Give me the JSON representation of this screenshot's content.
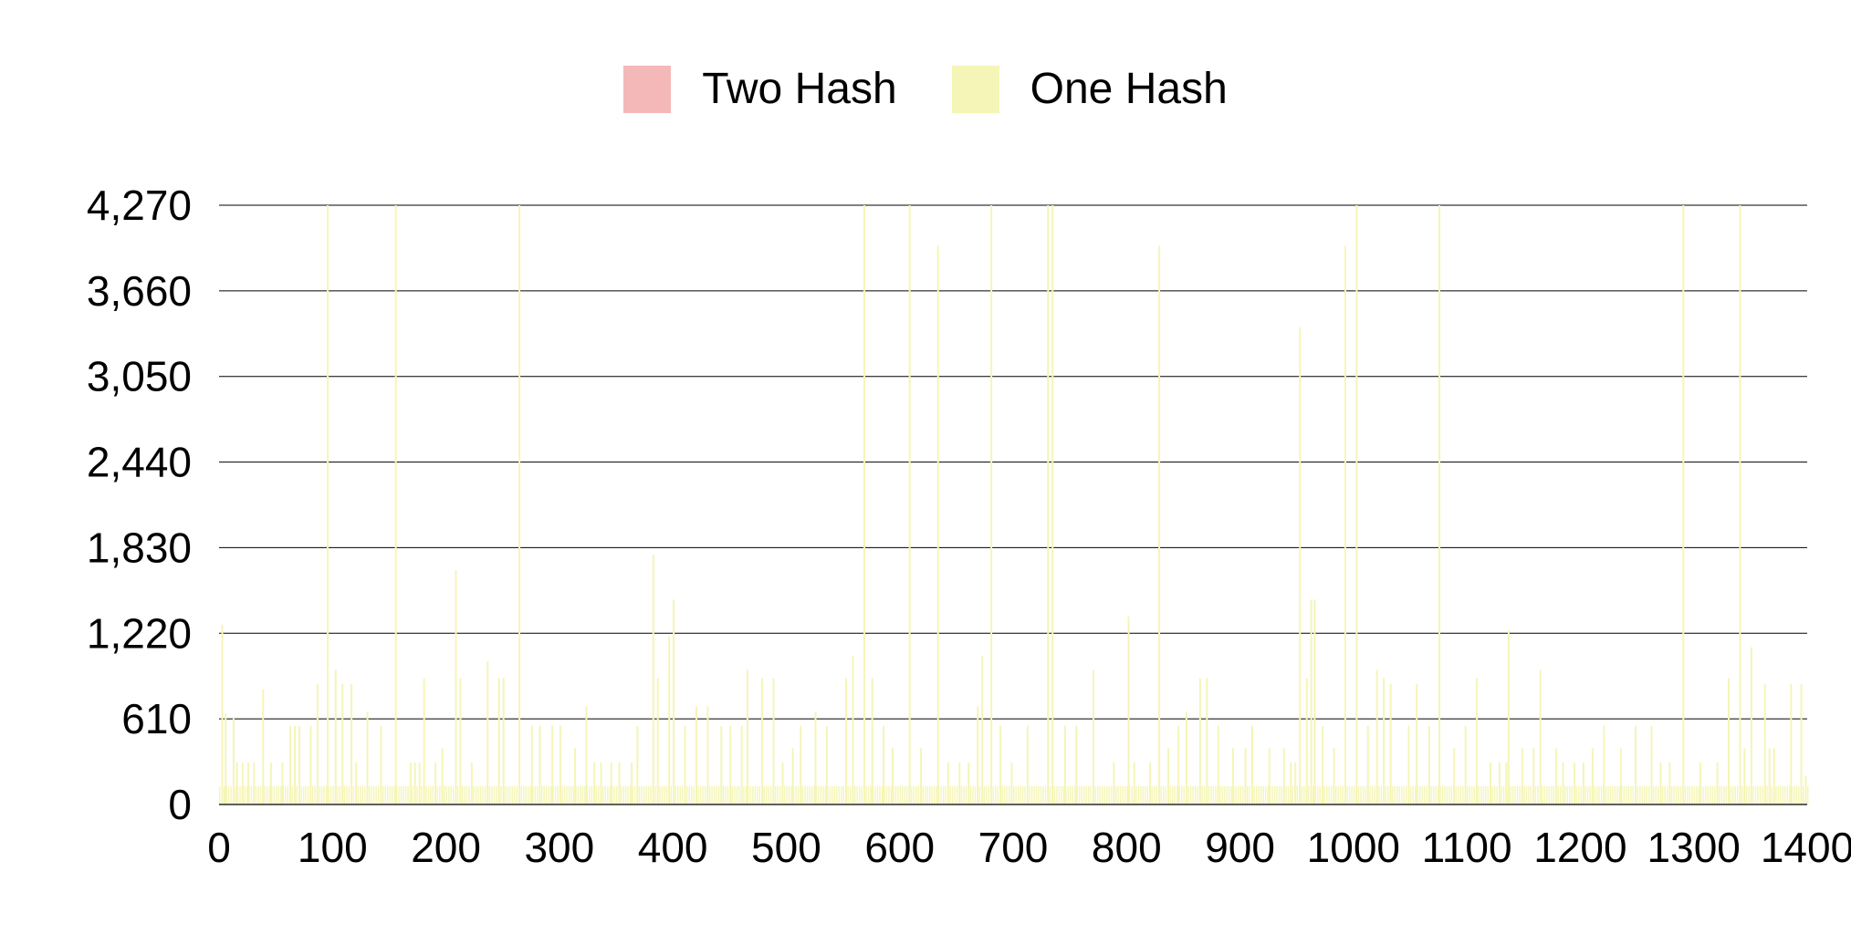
{
  "chart_data": {
    "type": "bar",
    "title": "",
    "xlabel": "",
    "ylabel": "",
    "xlim": [
      0,
      1400
    ],
    "ylim": [
      0,
      4270
    ],
    "x_ticks": [
      "0",
      "100",
      "200",
      "300",
      "400",
      "500",
      "600",
      "700",
      "800",
      "900",
      "1000",
      "1100",
      "1200",
      "1300",
      "1400"
    ],
    "y_ticks": [
      "0",
      "610",
      "1,220",
      "1,830",
      "2,440",
      "3,050",
      "3,660",
      "4,270"
    ],
    "grid": true,
    "legend_position": "top-center",
    "baseline": 130,
    "series": [
      {
        "name": "Two Hash",
        "color": "#f4b8b8",
        "values": []
      },
      {
        "name": "One Hash",
        "color": "#f5f5b8",
        "points": [
          [
            2,
            1280
          ],
          [
            5,
            650
          ],
          [
            12,
            620
          ],
          [
            15,
            300
          ],
          [
            20,
            300
          ],
          [
            25,
            300
          ],
          [
            30,
            300
          ],
          [
            38,
            820
          ],
          [
            45,
            300
          ],
          [
            55,
            300
          ],
          [
            62,
            560
          ],
          [
            66,
            560
          ],
          [
            70,
            560
          ],
          [
            80,
            560
          ],
          [
            86,
            860
          ],
          [
            95,
            4270
          ],
          [
            102,
            960
          ],
          [
            108,
            860
          ],
          [
            116,
            860
          ],
          [
            120,
            300
          ],
          [
            130,
            660
          ],
          [
            142,
            560
          ],
          [
            155,
            4270
          ],
          [
            168,
            300
          ],
          [
            172,
            300
          ],
          [
            176,
            300
          ],
          [
            180,
            900
          ],
          [
            190,
            300
          ],
          [
            196,
            400
          ],
          [
            208,
            1670
          ],
          [
            212,
            900
          ],
          [
            222,
            300
          ],
          [
            236,
            1020
          ],
          [
            246,
            900
          ],
          [
            250,
            900
          ],
          [
            264,
            4270
          ],
          [
            275,
            560
          ],
          [
            282,
            560
          ],
          [
            293,
            560
          ],
          [
            300,
            560
          ],
          [
            313,
            400
          ],
          [
            323,
            700
          ],
          [
            330,
            300
          ],
          [
            336,
            300
          ],
          [
            345,
            300
          ],
          [
            352,
            300
          ],
          [
            363,
            300
          ],
          [
            368,
            560
          ],
          [
            382,
            1780
          ],
          [
            386,
            900
          ],
          [
            396,
            1200
          ],
          [
            400,
            1460
          ],
          [
            410,
            560
          ],
          [
            420,
            700
          ],
          [
            430,
            700
          ],
          [
            442,
            560
          ],
          [
            450,
            560
          ],
          [
            460,
            560
          ],
          [
            465,
            960
          ],
          [
            478,
            900
          ],
          [
            488,
            900
          ],
          [
            496,
            300
          ],
          [
            505,
            400
          ],
          [
            512,
            560
          ],
          [
            525,
            660
          ],
          [
            535,
            560
          ],
          [
            552,
            900
          ],
          [
            558,
            1060
          ],
          [
            568,
            4270
          ],
          [
            575,
            900
          ],
          [
            585,
            560
          ],
          [
            593,
            400
          ],
          [
            608,
            4270
          ],
          [
            618,
            400
          ],
          [
            633,
            3980
          ],
          [
            642,
            300
          ],
          [
            652,
            300
          ],
          [
            660,
            300
          ],
          [
            668,
            700
          ],
          [
            672,
            1060
          ],
          [
            680,
            4270
          ],
          [
            688,
            560
          ],
          [
            698,
            300
          ],
          [
            712,
            560
          ],
          [
            730,
            4270
          ],
          [
            734,
            4270
          ],
          [
            745,
            560
          ],
          [
            755,
            560
          ],
          [
            770,
            960
          ],
          [
            788,
            300
          ],
          [
            801,
            1340
          ],
          [
            806,
            300
          ],
          [
            820,
            300
          ],
          [
            828,
            3980
          ],
          [
            836,
            400
          ],
          [
            845,
            560
          ],
          [
            852,
            660
          ],
          [
            864,
            900
          ],
          [
            870,
            900
          ],
          [
            880,
            560
          ],
          [
            893,
            400
          ],
          [
            904,
            400
          ],
          [
            910,
            560
          ],
          [
            925,
            400
          ],
          [
            938,
            400
          ],
          [
            944,
            300
          ],
          [
            948,
            300
          ],
          [
            952,
            3400
          ],
          [
            958,
            900
          ],
          [
            962,
            1460
          ],
          [
            965,
            1460
          ],
          [
            972,
            560
          ],
          [
            982,
            400
          ],
          [
            992,
            3980
          ],
          [
            1002,
            4270
          ],
          [
            1012,
            560
          ],
          [
            1020,
            960
          ],
          [
            1026,
            900
          ],
          [
            1032,
            860
          ],
          [
            1048,
            560
          ],
          [
            1055,
            860
          ],
          [
            1066,
            560
          ],
          [
            1075,
            4270
          ],
          [
            1088,
            400
          ],
          [
            1098,
            560
          ],
          [
            1108,
            900
          ],
          [
            1120,
            300
          ],
          [
            1128,
            300
          ],
          [
            1134,
            300
          ],
          [
            1136,
            1240
          ],
          [
            1148,
            400
          ],
          [
            1158,
            400
          ],
          [
            1164,
            960
          ],
          [
            1178,
            400
          ],
          [
            1184,
            300
          ],
          [
            1194,
            300
          ],
          [
            1202,
            300
          ],
          [
            1210,
            400
          ],
          [
            1220,
            560
          ],
          [
            1235,
            400
          ],
          [
            1248,
            560
          ],
          [
            1262,
            560
          ],
          [
            1270,
            300
          ],
          [
            1278,
            300
          ],
          [
            1290,
            4270
          ],
          [
            1305,
            300
          ],
          [
            1320,
            300
          ],
          [
            1330,
            900
          ],
          [
            1340,
            4270
          ],
          [
            1344,
            400
          ],
          [
            1350,
            1120
          ],
          [
            1362,
            860
          ],
          [
            1366,
            400
          ],
          [
            1370,
            400
          ],
          [
            1385,
            860
          ],
          [
            1394,
            860
          ],
          [
            1398,
            200
          ]
        ]
      }
    ]
  }
}
